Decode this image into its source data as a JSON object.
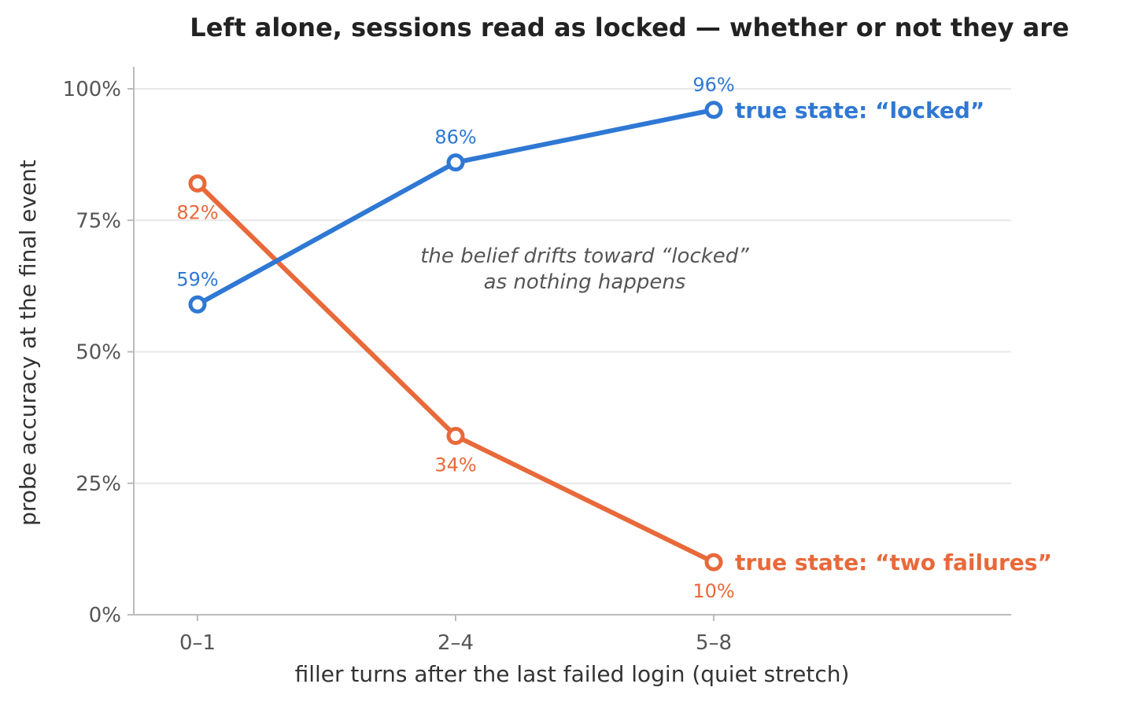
{
  "chart_data": {
    "type": "line",
    "title": "Left alone, sessions read as locked — whether or not they are",
    "xlabel": "filler turns after the last failed login (quiet stretch)",
    "ylabel": "probe accuracy at the final event",
    "categories": [
      "0–1",
      "2–4",
      "5–8"
    ],
    "ylim": [
      0,
      100
    ],
    "yticks": [
      0,
      25,
      50,
      75,
      100
    ],
    "ytick_labels": [
      "0%",
      "25%",
      "50%",
      "75%",
      "100%"
    ],
    "grid": "horizontal",
    "legend": "none (series labeled at line ends)",
    "series": [
      {
        "name": "true state: “locked”",
        "color": "#2f78d4",
        "values": [
          59,
          86,
          96
        ],
        "labels": [
          "59%",
          "86%",
          "96%"
        ],
        "label_position": "above"
      },
      {
        "name": "true state: “two failures”",
        "color": "#e8693a",
        "values": [
          82,
          34,
          10
        ],
        "labels": [
          "82%",
          "34%",
          "10%"
        ],
        "label_position": "below"
      }
    ],
    "annotation": {
      "lines": [
        "the belief drifts toward “locked”",
        "as nothing happens"
      ]
    }
  }
}
